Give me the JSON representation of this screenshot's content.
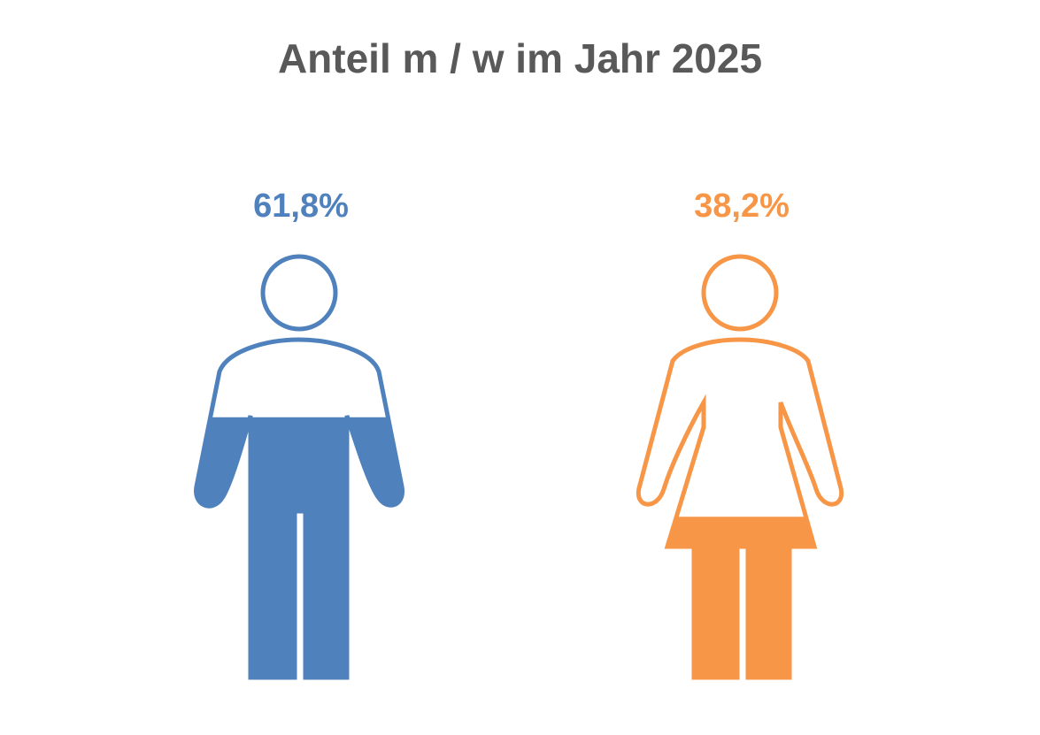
{
  "chart_data": {
    "type": "pictogram",
    "title": "Anteil m / w im Jahr 2025",
    "categories": [
      "m",
      "w"
    ],
    "values": [
      61.8,
      38.2
    ],
    "value_labels": [
      "61,8%",
      "38,2%"
    ],
    "unit": "%",
    "colors": [
      "#4f81bd",
      "#f79646"
    ],
    "icons": [
      "male-person-icon",
      "female-person-icon"
    ]
  }
}
